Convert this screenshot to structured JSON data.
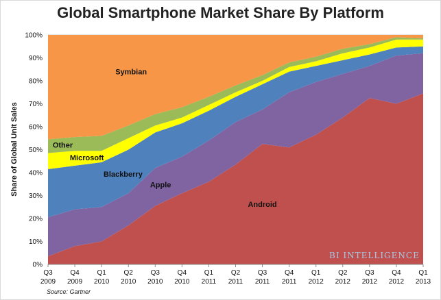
{
  "title": "Global Smartphone Market Share By Platform",
  "source": "Source: Gartner",
  "watermark": "BI INTELLIGENCE",
  "chart_data": {
    "type": "area",
    "stacked": true,
    "title": "Global Smartphone Market Share By Platform",
    "xlabel": "",
    "ylabel": "Share of Global Unit Sales",
    "ylim": [
      0,
      100
    ],
    "yticks": [
      "0%",
      "10%",
      "20%",
      "30%",
      "40%",
      "50%",
      "60%",
      "70%",
      "80%",
      "90%",
      "100%"
    ],
    "grid": true,
    "categories": [
      [
        "Q3",
        "2009"
      ],
      [
        "Q4",
        "2009"
      ],
      [
        "Q1",
        "2010"
      ],
      [
        "Q2",
        "2010"
      ],
      [
        "Q3",
        "2010"
      ],
      [
        "Q4",
        "2010"
      ],
      [
        "Q1",
        "2011"
      ],
      [
        "Q2",
        "2011"
      ],
      [
        "Q3",
        "2011"
      ],
      [
        "Q4",
        "2011"
      ],
      [
        "Q1",
        "2012"
      ],
      [
        "Q2",
        "2012"
      ],
      [
        "Q3",
        "2012"
      ],
      [
        "Q4",
        "2012"
      ],
      [
        "Q1",
        "2013"
      ]
    ],
    "series": [
      {
        "name": "Android",
        "color": "#c0504d",
        "values": [
          3.5,
          8,
          10,
          17,
          25.5,
          31,
          36,
          43.5,
          52.5,
          51,
          56.5,
          64,
          72.5,
          70,
          74.5
        ]
      },
      {
        "name": "Apple",
        "color": "#8064a2",
        "values": [
          17,
          16,
          15,
          14,
          16.5,
          16,
          18,
          18.5,
          15,
          24,
          23,
          19,
          14,
          21,
          17.5
        ]
      },
      {
        "name": "Blackberry",
        "color": "#4f81bd",
        "values": [
          21,
          19,
          19.5,
          19,
          15.5,
          14.5,
          13,
          11,
          11,
          9,
          7,
          6,
          5,
          3.5,
          3
        ]
      },
      {
        "name": "Microsoft",
        "color": "#ffff00",
        "values": [
          7,
          6.5,
          5,
          5,
          3,
          2.5,
          2.5,
          2,
          1.5,
          2,
          2,
          3,
          3,
          3.5,
          3
        ]
      },
      {
        "name": "Other",
        "color": "#9bbb59",
        "values": [
          6,
          6,
          6.5,
          5.5,
          5,
          4.5,
          3.5,
          3,
          2.5,
          2,
          2,
          2,
          1.5,
          1,
          0.5
        ]
      },
      {
        "name": "Symbian",
        "color": "#f79646",
        "values": [
          45.5,
          44.5,
          44,
          39.5,
          34.5,
          31.5,
          27,
          22,
          17.5,
          12,
          9.5,
          6,
          4,
          1,
          1.5
        ]
      }
    ]
  }
}
